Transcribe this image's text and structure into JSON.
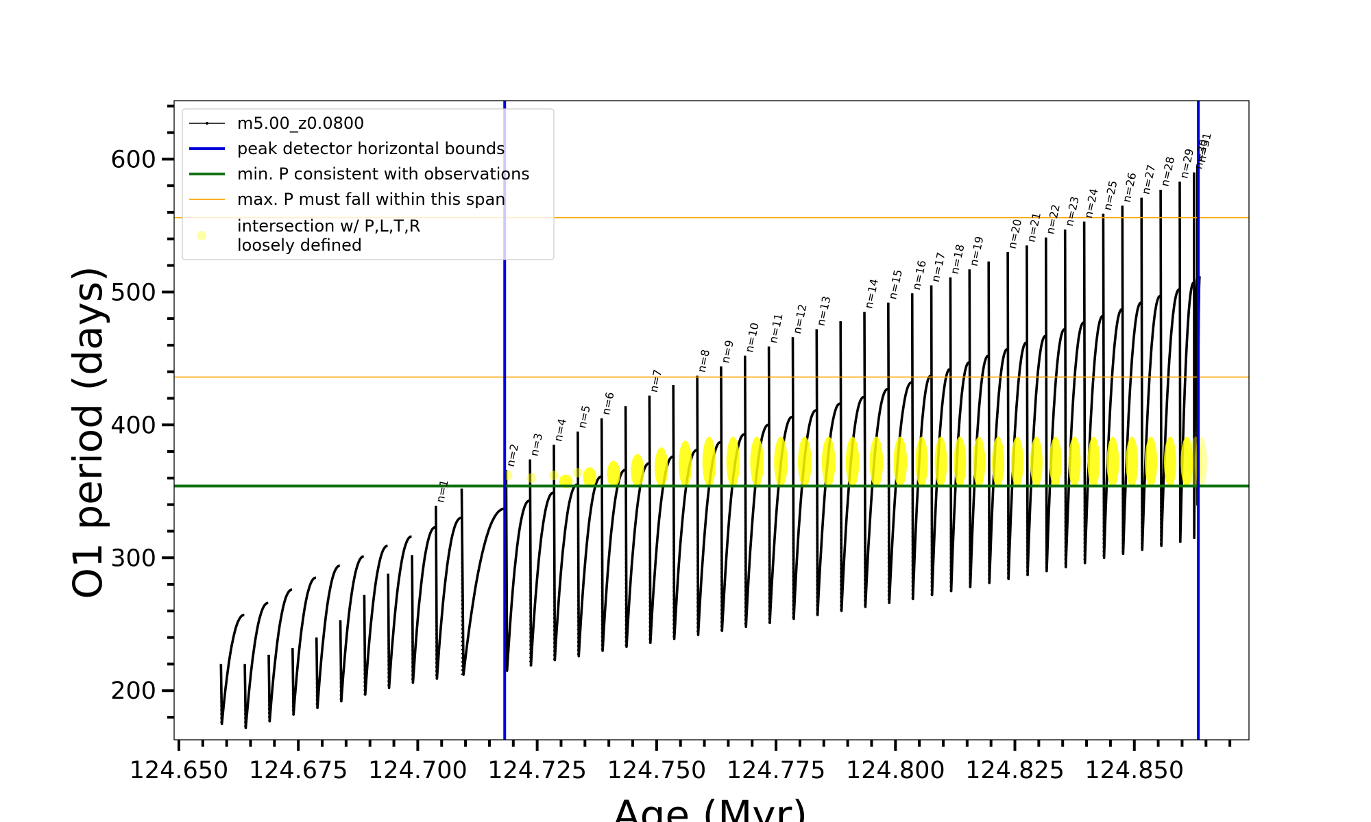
{
  "chart_data": {
    "type": "line",
    "xlabel": "Age (Myr)",
    "ylabel": "O1 period (days)",
    "xlim": [
      124.649,
      124.874
    ],
    "ylim": [
      163,
      644
    ],
    "x_ticks": [
      124.65,
      124.675,
      124.7,
      124.725,
      124.75,
      124.775,
      124.8,
      124.825,
      124.85
    ],
    "x_tick_labels": [
      "124.650",
      "124.675",
      "124.700",
      "124.725",
      "124.750",
      "124.775",
      "124.800",
      "124.825",
      "124.850"
    ],
    "x_minor_step": 0.005,
    "y_ticks": [
      200,
      300,
      400,
      500,
      600
    ],
    "y_tick_labels": [
      "200",
      "300",
      "400",
      "500",
      "600"
    ],
    "y_minor_step": 20,
    "grid": false,
    "legend_position": "top-left",
    "legend": [
      {
        "label": "m5.00_z0.0800",
        "kind": "line-marker",
        "color": "#000000"
      },
      {
        "label": "peak detector horizontal bounds",
        "kind": "line",
        "color": "#0000dd"
      },
      {
        "label": "min. P consistent with observations",
        "kind": "line",
        "color": "#107010"
      },
      {
        "label": "max. P must fall within this span",
        "kind": "line",
        "color": "#ffa500"
      },
      {
        "label": "intersection w/ P,L,T,R",
        "label2": "loosely defined",
        "kind": "dot",
        "color": "#ffff00"
      }
    ],
    "vertical_lines": {
      "color": "#0000dd",
      "x": [
        124.7182,
        124.8634
      ]
    },
    "min_p_line": {
      "color": "#107010",
      "y": 354
    },
    "max_p_span": {
      "color": "#ffa500",
      "y": [
        436,
        556
      ]
    },
    "intersection_color": "#ffff00",
    "pulse_series": {
      "name": "m5.00_z0.0800",
      "color": "#000000",
      "pulses": [
        {
          "start": 124.6588,
          "min": 175,
          "max": 257,
          "spike": 220,
          "label": null
        },
        {
          "start": 124.6638,
          "min": 172,
          "max": 266,
          "spike": 220,
          "label": null
        },
        {
          "start": 124.6688,
          "min": 177,
          "max": 276,
          "spike": 227,
          "label": null
        },
        {
          "start": 124.6738,
          "min": 182,
          "max": 285,
          "spike": 232,
          "label": null
        },
        {
          "start": 124.6788,
          "min": 187,
          "max": 294,
          "spike": 240,
          "label": null
        },
        {
          "start": 124.6838,
          "min": 192,
          "max": 301,
          "spike": 253,
          "label": null
        },
        {
          "start": 124.6888,
          "min": 197,
          "max": 309,
          "spike": 272,
          "label": null
        },
        {
          "start": 124.6938,
          "min": 202,
          "max": 316,
          "spike": 288,
          "label": null
        },
        {
          "start": 124.6988,
          "min": 206,
          "max": 323,
          "spike": 302,
          "label": null
        },
        {
          "start": 124.7038,
          "min": 209,
          "max": 330,
          "spike": 339,
          "label": "n=1"
        },
        {
          "start": 124.7092,
          "min": 212,
          "max": 337,
          "spike": 352,
          "label": null
        },
        {
          "start": 124.7185,
          "min": 215,
          "max": 343,
          "spike": 366,
          "label": "n=2"
        },
        {
          "start": 124.7235,
          "min": 219,
          "max": 349,
          "spike": 374,
          "label": "n=3"
        },
        {
          "start": 124.7285,
          "min": 223,
          "max": 355,
          "spike": 385,
          "label": "n=4"
        },
        {
          "start": 124.7335,
          "min": 226,
          "max": 361,
          "spike": 395,
          "label": "n=5"
        },
        {
          "start": 124.7385,
          "min": 230,
          "max": 366,
          "spike": 405,
          "label": "n=6"
        },
        {
          "start": 124.7435,
          "min": 233,
          "max": 371,
          "spike": 414,
          "label": null
        },
        {
          "start": 124.7485,
          "min": 236,
          "max": 376,
          "spike": 422,
          "label": "n=7"
        },
        {
          "start": 124.7535,
          "min": 239,
          "max": 381,
          "spike": 430,
          "label": null
        },
        {
          "start": 124.7585,
          "min": 242,
          "max": 387,
          "spike": 437,
          "label": "n=8"
        },
        {
          "start": 124.7635,
          "min": 245,
          "max": 393,
          "spike": 444,
          "label": "n=9"
        },
        {
          "start": 124.7685,
          "min": 248,
          "max": 400,
          "spike": 452,
          "label": "n=10"
        },
        {
          "start": 124.7735,
          "min": 251,
          "max": 406,
          "spike": 459,
          "label": "n=11"
        },
        {
          "start": 124.7785,
          "min": 254,
          "max": 411,
          "spike": 466,
          "label": "n=12"
        },
        {
          "start": 124.7835,
          "min": 257,
          "max": 416,
          "spike": 472,
          "label": "n=13"
        },
        {
          "start": 124.7885,
          "min": 260,
          "max": 421,
          "spike": 478,
          "label": null
        },
        {
          "start": 124.7935,
          "min": 263,
          "max": 427,
          "spike": 485,
          "label": "n=14"
        },
        {
          "start": 124.7985,
          "min": 266,
          "max": 432,
          "spike": 492,
          "label": "n=15"
        },
        {
          "start": 124.8035,
          "min": 269,
          "max": 437,
          "spike": 499,
          "label": "n=16"
        },
        {
          "start": 124.8075,
          "min": 272,
          "max": 442,
          "spike": 505,
          "label": "n=17"
        },
        {
          "start": 124.8115,
          "min": 275,
          "max": 447,
          "spike": 511,
          "label": "n=18"
        },
        {
          "start": 124.8155,
          "min": 278,
          "max": 452,
          "spike": 517,
          "label": "n=19"
        },
        {
          "start": 124.8195,
          "min": 281,
          "max": 457,
          "spike": 523,
          "label": null
        },
        {
          "start": 124.8235,
          "min": 284,
          "max": 462,
          "spike": 530,
          "label": "n=20"
        },
        {
          "start": 124.8275,
          "min": 287,
          "max": 467,
          "spike": 535,
          "label": "n=21"
        },
        {
          "start": 124.8315,
          "min": 290,
          "max": 472,
          "spike": 541,
          "label": "n=22"
        },
        {
          "start": 124.8355,
          "min": 293,
          "max": 477,
          "spike": 547,
          "label": "n=23"
        },
        {
          "start": 124.8395,
          "min": 296,
          "max": 482,
          "spike": 553,
          "label": "n=24"
        },
        {
          "start": 124.8435,
          "min": 300,
          "max": 487,
          "spike": 559,
          "label": "n=25"
        },
        {
          "start": 124.8475,
          "min": 303,
          "max": 492,
          "spike": 565,
          "label": "n=26"
        },
        {
          "start": 124.8515,
          "min": 306,
          "max": 497,
          "spike": 571,
          "label": "n=27"
        },
        {
          "start": 124.8555,
          "min": 309,
          "max": 502,
          "spike": 577,
          "label": "n=28"
        },
        {
          "start": 124.8595,
          "min": 312,
          "max": 507,
          "spike": 583,
          "label": "n=29"
        },
        {
          "start": 124.8625,
          "min": 315,
          "max": 510,
          "spike": 590,
          "label": "n=30"
        },
        {
          "start": 124.8632,
          "min": 340,
          "max": 512,
          "spike": 595,
          "label": "n=31"
        }
      ]
    }
  }
}
